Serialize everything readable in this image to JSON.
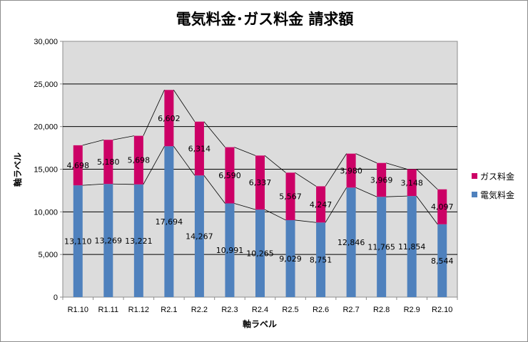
{
  "chart_data": {
    "type": "bar",
    "stacked": true,
    "title": "電気料金･ガス料金 請求額",
    "xlabel": "軸ラベル",
    "ylabel": "軸ラベル",
    "ylim": [
      0,
      30000
    ],
    "yticks": [
      "0",
      "5,000",
      "10,000",
      "15,000",
      "20,000",
      "25,000",
      "30,000"
    ],
    "grid": true,
    "legend_position": "right",
    "series_lines": true,
    "categories": [
      "R1.10",
      "R1.11",
      "R1.12",
      "R2.1",
      "R2.2",
      "R2.3",
      "R2.4",
      "R2.5",
      "R2.6",
      "R2.7",
      "R2.8",
      "R2.9",
      "R2.10"
    ],
    "series": [
      {
        "name": "電気料金",
        "color": "#4f81bd",
        "values": [
          13110,
          13269,
          13221,
          17694,
          14267,
          10991,
          10265,
          9029,
          8751,
          12846,
          11765,
          11854,
          8544
        ],
        "labels": [
          "13,110",
          "13,269",
          "13,221",
          "17,694",
          "14,267",
          "10,991",
          "10,265",
          "9,029",
          "8,751",
          "12,846",
          "11,765",
          "11,854",
          "8,544"
        ]
      },
      {
        "name": "ガス料金",
        "color": "#cc0066",
        "values": [
          4698,
          5180,
          5698,
          6602,
          6314,
          6590,
          6337,
          5567,
          4247,
          3980,
          3969,
          3148,
          4097
        ],
        "labels": [
          "4,698",
          "5,180",
          "5,698",
          "6,602",
          "6,314",
          "6,590",
          "6,337",
          "5,567",
          "4,247",
          "3,980",
          "3,969",
          "3,148",
          "4,097"
        ]
      }
    ]
  }
}
